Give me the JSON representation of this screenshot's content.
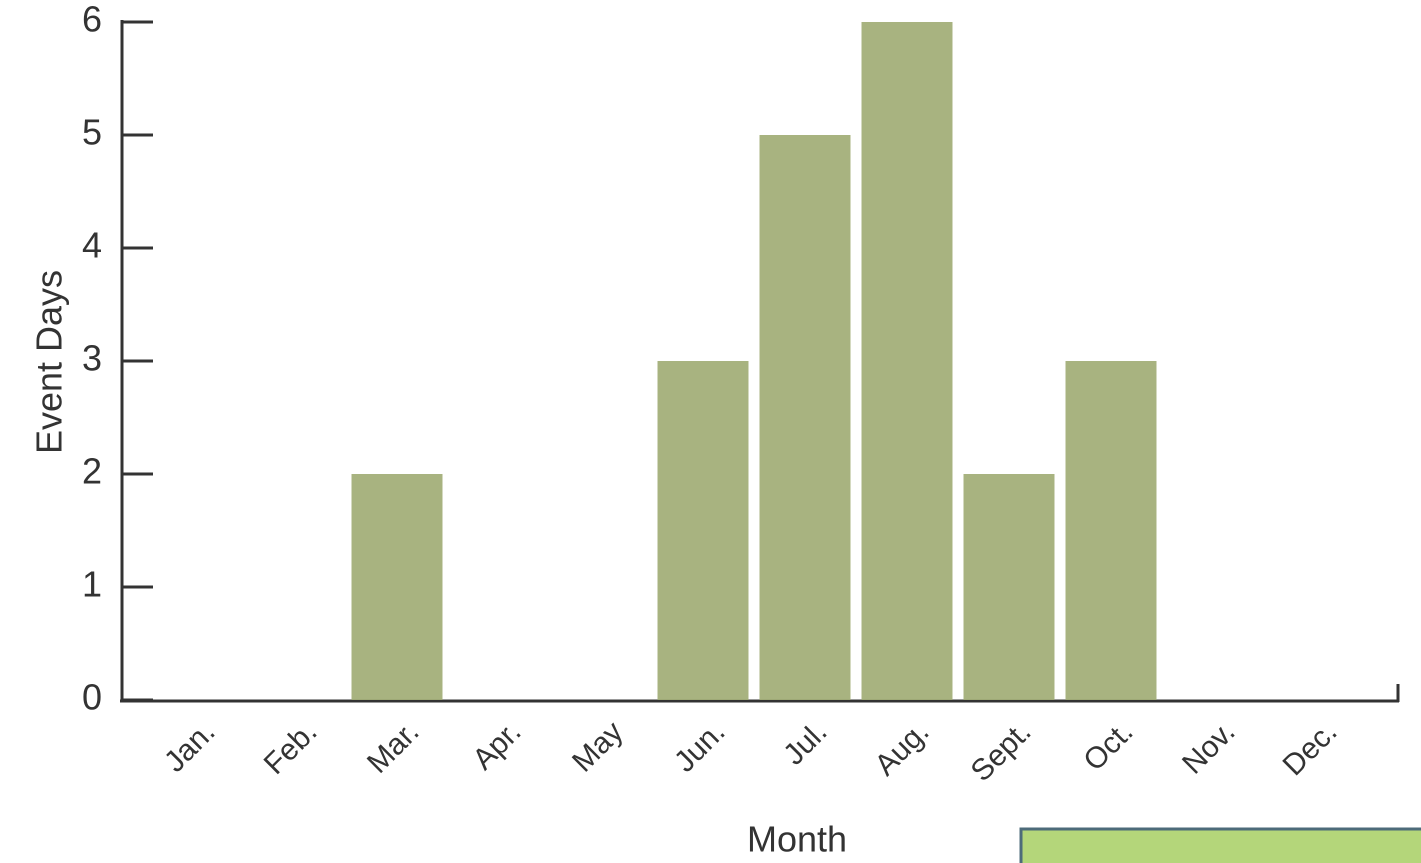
{
  "chart_data": {
    "type": "bar",
    "x_label": "Month",
    "y_label": "Event Days",
    "categories": [
      "Jan.",
      "Feb.",
      "Mar.",
      "Apr.",
      "May",
      "Jun.",
      "Jul.",
      "Aug.",
      "Sept.",
      "Oct.",
      "Nov.",
      "Dec."
    ],
    "values": [
      0,
      0,
      2,
      0,
      0,
      3,
      5,
      6,
      2,
      3,
      0,
      0
    ],
    "color": "#9fab72",
    "ylim": [
      0,
      6
    ],
    "yticks": [
      0,
      1,
      2,
      3,
      4,
      5,
      6
    ]
  }
}
